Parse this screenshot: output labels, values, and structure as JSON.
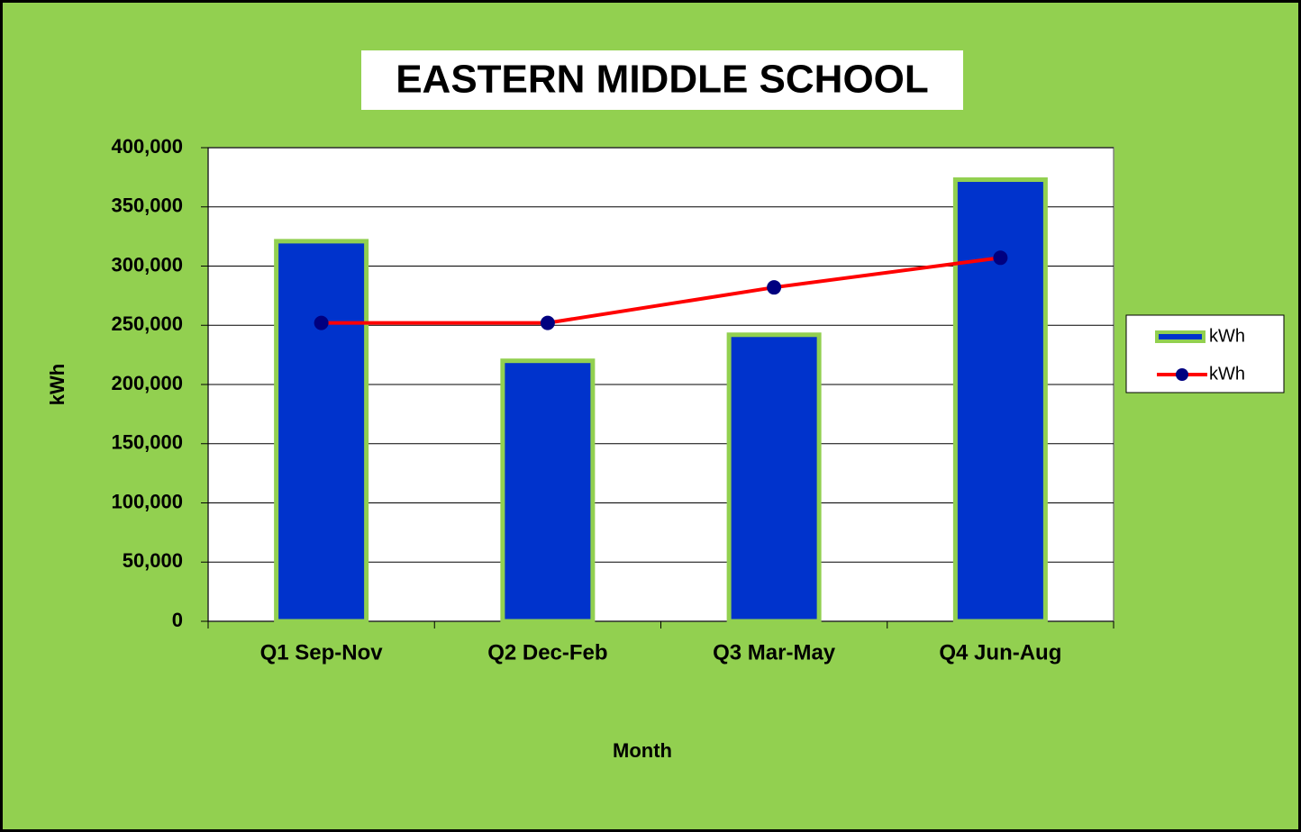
{
  "chart_data": {
    "type": "combo",
    "title": "EASTERN MIDDLE SCHOOL",
    "x_label": "Month",
    "y_label": "kWh",
    "categories": [
      "Q1 Sep-Nov",
      "Q2 Dec-Feb",
      "Q3 Mar-May",
      "Q4 Jun-Aug"
    ],
    "series": [
      {
        "name": "kWh",
        "type": "bar",
        "color": "#0033cc",
        "values": [
          321000,
          220000,
          242000,
          373000
        ]
      },
      {
        "name": "kWh",
        "type": "line",
        "color": "#ff0000",
        "marker_color": "#000080",
        "values": [
          252000,
          252000,
          282000,
          307000
        ]
      }
    ],
    "ylim": [
      0,
      400000
    ],
    "yticks": [
      0,
      {
        "value": 50000,
        "label": "50,000"
      },
      {
        "value": 100000,
        "label": "100,000"
      },
      {
        "value": 150000,
        "label": "150,000"
      },
      {
        "value": 200000,
        "label": "200,000"
      },
      {
        "value": 250000,
        "label": "250,000"
      },
      {
        "value": 300000,
        "label": "300,000"
      },
      {
        "value": 350000,
        "label": "350,000"
      },
      {
        "value": 400000,
        "label": "400,000"
      }
    ],
    "grid": true,
    "legend": "right"
  }
}
